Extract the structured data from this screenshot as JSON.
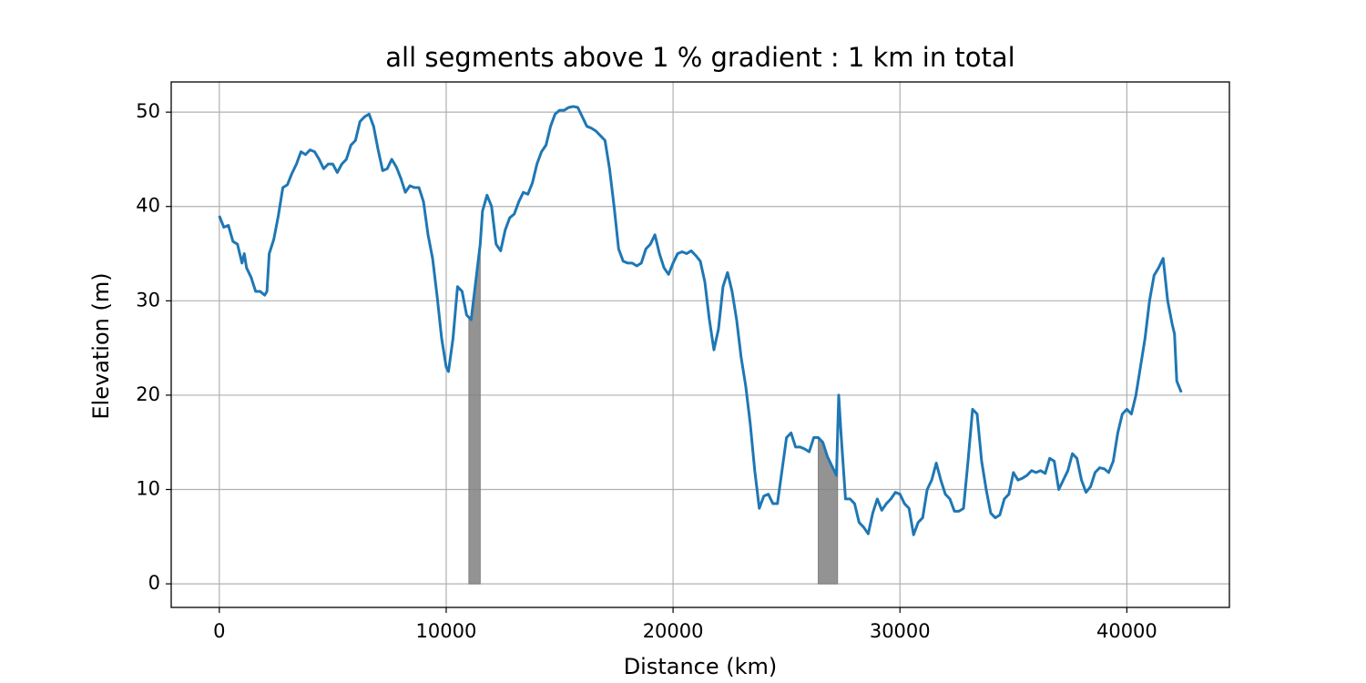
{
  "chart_data": {
    "type": "line",
    "title": "all segments above 1 % gradient : 1 km in total",
    "x_label": "Distance (km)",
    "y_label": "Elevation (m)",
    "xlim": [
      -2120,
      44520
    ],
    "ylim": [
      -2.5,
      53.2
    ],
    "xticks": [
      0,
      10000,
      20000,
      30000,
      40000
    ],
    "yticks": [
      0,
      10,
      20,
      30,
      40,
      50
    ],
    "grid": true,
    "series": [
      {
        "color": "#1f77b4",
        "x": [
          0,
          200,
          400,
          600,
          800,
          1000,
          1100,
          1200,
          1400,
          1600,
          1800,
          2000,
          2100,
          2200,
          2400,
          2600,
          2800,
          3000,
          3200,
          3400,
          3600,
          3800,
          4000,
          4200,
          4400,
          4600,
          4800,
          5000,
          5200,
          5400,
          5600,
          5800,
          6000,
          6200,
          6400,
          6600,
          6800,
          7000,
          7200,
          7400,
          7600,
          7800,
          8000,
          8200,
          8400,
          8600,
          8800,
          9000,
          9200,
          9400,
          9600,
          9800,
          10000,
          10100,
          10300,
          10500,
          10700,
          10900,
          11100,
          11300,
          11500,
          11600,
          11800,
          12000,
          12200,
          12400,
          12600,
          12800,
          13000,
          13200,
          13400,
          13600,
          13800,
          14000,
          14200,
          14400,
          14600,
          14800,
          15000,
          15200,
          15400,
          15600,
          15800,
          16000,
          16200,
          16400,
          16600,
          16800,
          17000,
          17200,
          17400,
          17600,
          17800,
          18000,
          18200,
          18400,
          18600,
          18800,
          19000,
          19200,
          19400,
          19600,
          19800,
          20000,
          20200,
          20400,
          20600,
          20800,
          21000,
          21200,
          21400,
          21600,
          21800,
          22000,
          22200,
          22400,
          22600,
          22800,
          23000,
          23200,
          23400,
          23600,
          23800,
          24000,
          24200,
          24400,
          24600,
          24800,
          25000,
          25200,
          25400,
          25600,
          25800,
          26000,
          26200,
          26400,
          26600,
          26800,
          27000,
          27200,
          27300,
          27400,
          27600,
          27800,
          28000,
          28200,
          28400,
          28600,
          28800,
          29000,
          29200,
          29400,
          29600,
          29800,
          30000,
          30200,
          30400,
          30600,
          30800,
          31000,
          31200,
          31400,
          31600,
          31800,
          32000,
          32200,
          32400,
          32600,
          32800,
          33000,
          33200,
          33400,
          33600,
          33800,
          34000,
          34200,
          34400,
          34600,
          34800,
          35000,
          35200,
          35400,
          35600,
          35800,
          36000,
          36200,
          36400,
          36600,
          36800,
          37000,
          37200,
          37400,
          37600,
          37800,
          38000,
          38200,
          38400,
          38600,
          38800,
          39000,
          39200,
          39400,
          39600,
          39800,
          40000,
          40200,
          40400,
          40600,
          40800,
          41000,
          41200,
          41400,
          41600,
          41800,
          42000,
          42100,
          42200,
          42400
        ],
        "values": [
          39,
          37.8,
          38,
          36.3,
          36,
          34,
          35,
          33.5,
          32.5,
          31,
          31,
          30.6,
          31,
          35,
          36.5,
          39,
          42,
          42.3,
          43.5,
          44.5,
          45.8,
          45.5,
          46,
          45.8,
          45,
          44,
          44.5,
          44.5,
          43.6,
          44.5,
          45,
          46.5,
          47,
          49,
          49.5,
          49.8,
          48.5,
          46,
          43.8,
          44,
          45,
          44.2,
          43,
          41.5,
          42.2,
          42,
          42,
          40.5,
          37,
          34.5,
          30.5,
          26,
          23,
          22.5,
          26,
          31.5,
          31,
          28.5,
          28,
          32,
          36,
          39.5,
          41.2,
          40,
          36,
          35.3,
          37.5,
          38.8,
          39.2,
          40.5,
          41.5,
          41.3,
          42.5,
          44.5,
          45.8,
          46.5,
          48.5,
          49.8,
          50.2,
          50.2,
          50.5,
          50.6,
          50.5,
          49.5,
          48.5,
          48.3,
          48,
          47.5,
          47,
          44,
          40,
          35.5,
          34.2,
          34,
          34,
          33.7,
          34,
          35.5,
          36,
          37,
          35,
          33.5,
          32.8,
          34,
          35,
          35.2,
          35,
          35.3,
          34.8,
          34.2,
          32,
          28,
          24.8,
          27,
          31.5,
          33,
          31,
          28,
          24,
          21,
          17,
          12,
          8,
          9.3,
          9.5,
          8.5,
          8.5,
          12,
          15.5,
          16,
          14.5,
          14.5,
          14.3,
          14,
          15.5,
          15.5,
          15,
          13.5,
          12.5,
          11.5,
          20,
          16,
          9,
          9,
          8.5,
          6.5,
          6,
          5.3,
          7.5,
          9,
          7.8,
          8.5,
          9,
          9.7,
          9.5,
          8.5,
          8,
          5.2,
          6.5,
          7,
          10,
          11,
          12.8,
          11,
          9.5,
          9,
          7.7,
          7.7,
          8,
          13,
          18.5,
          18,
          13,
          10,
          7.5,
          7,
          7.3,
          9,
          9.5,
          11.8,
          11,
          11.2,
          11.5,
          12,
          11.8,
          12,
          11.7,
          13.3,
          13,
          10,
          11,
          12,
          13.8,
          13.3,
          11,
          9.7,
          10.3,
          11.8,
          12.3,
          12.2,
          11.8,
          13,
          16,
          18,
          18.5,
          18,
          20,
          23,
          26,
          30,
          32.7,
          33.5,
          34.5,
          30,
          27.5,
          26.5,
          21.5,
          20.3
        ]
      }
    ],
    "segments": {
      "color": "#808080",
      "ranges": [
        [
          11000,
          11500
        ],
        [
          26400,
          27250
        ]
      ]
    }
  }
}
